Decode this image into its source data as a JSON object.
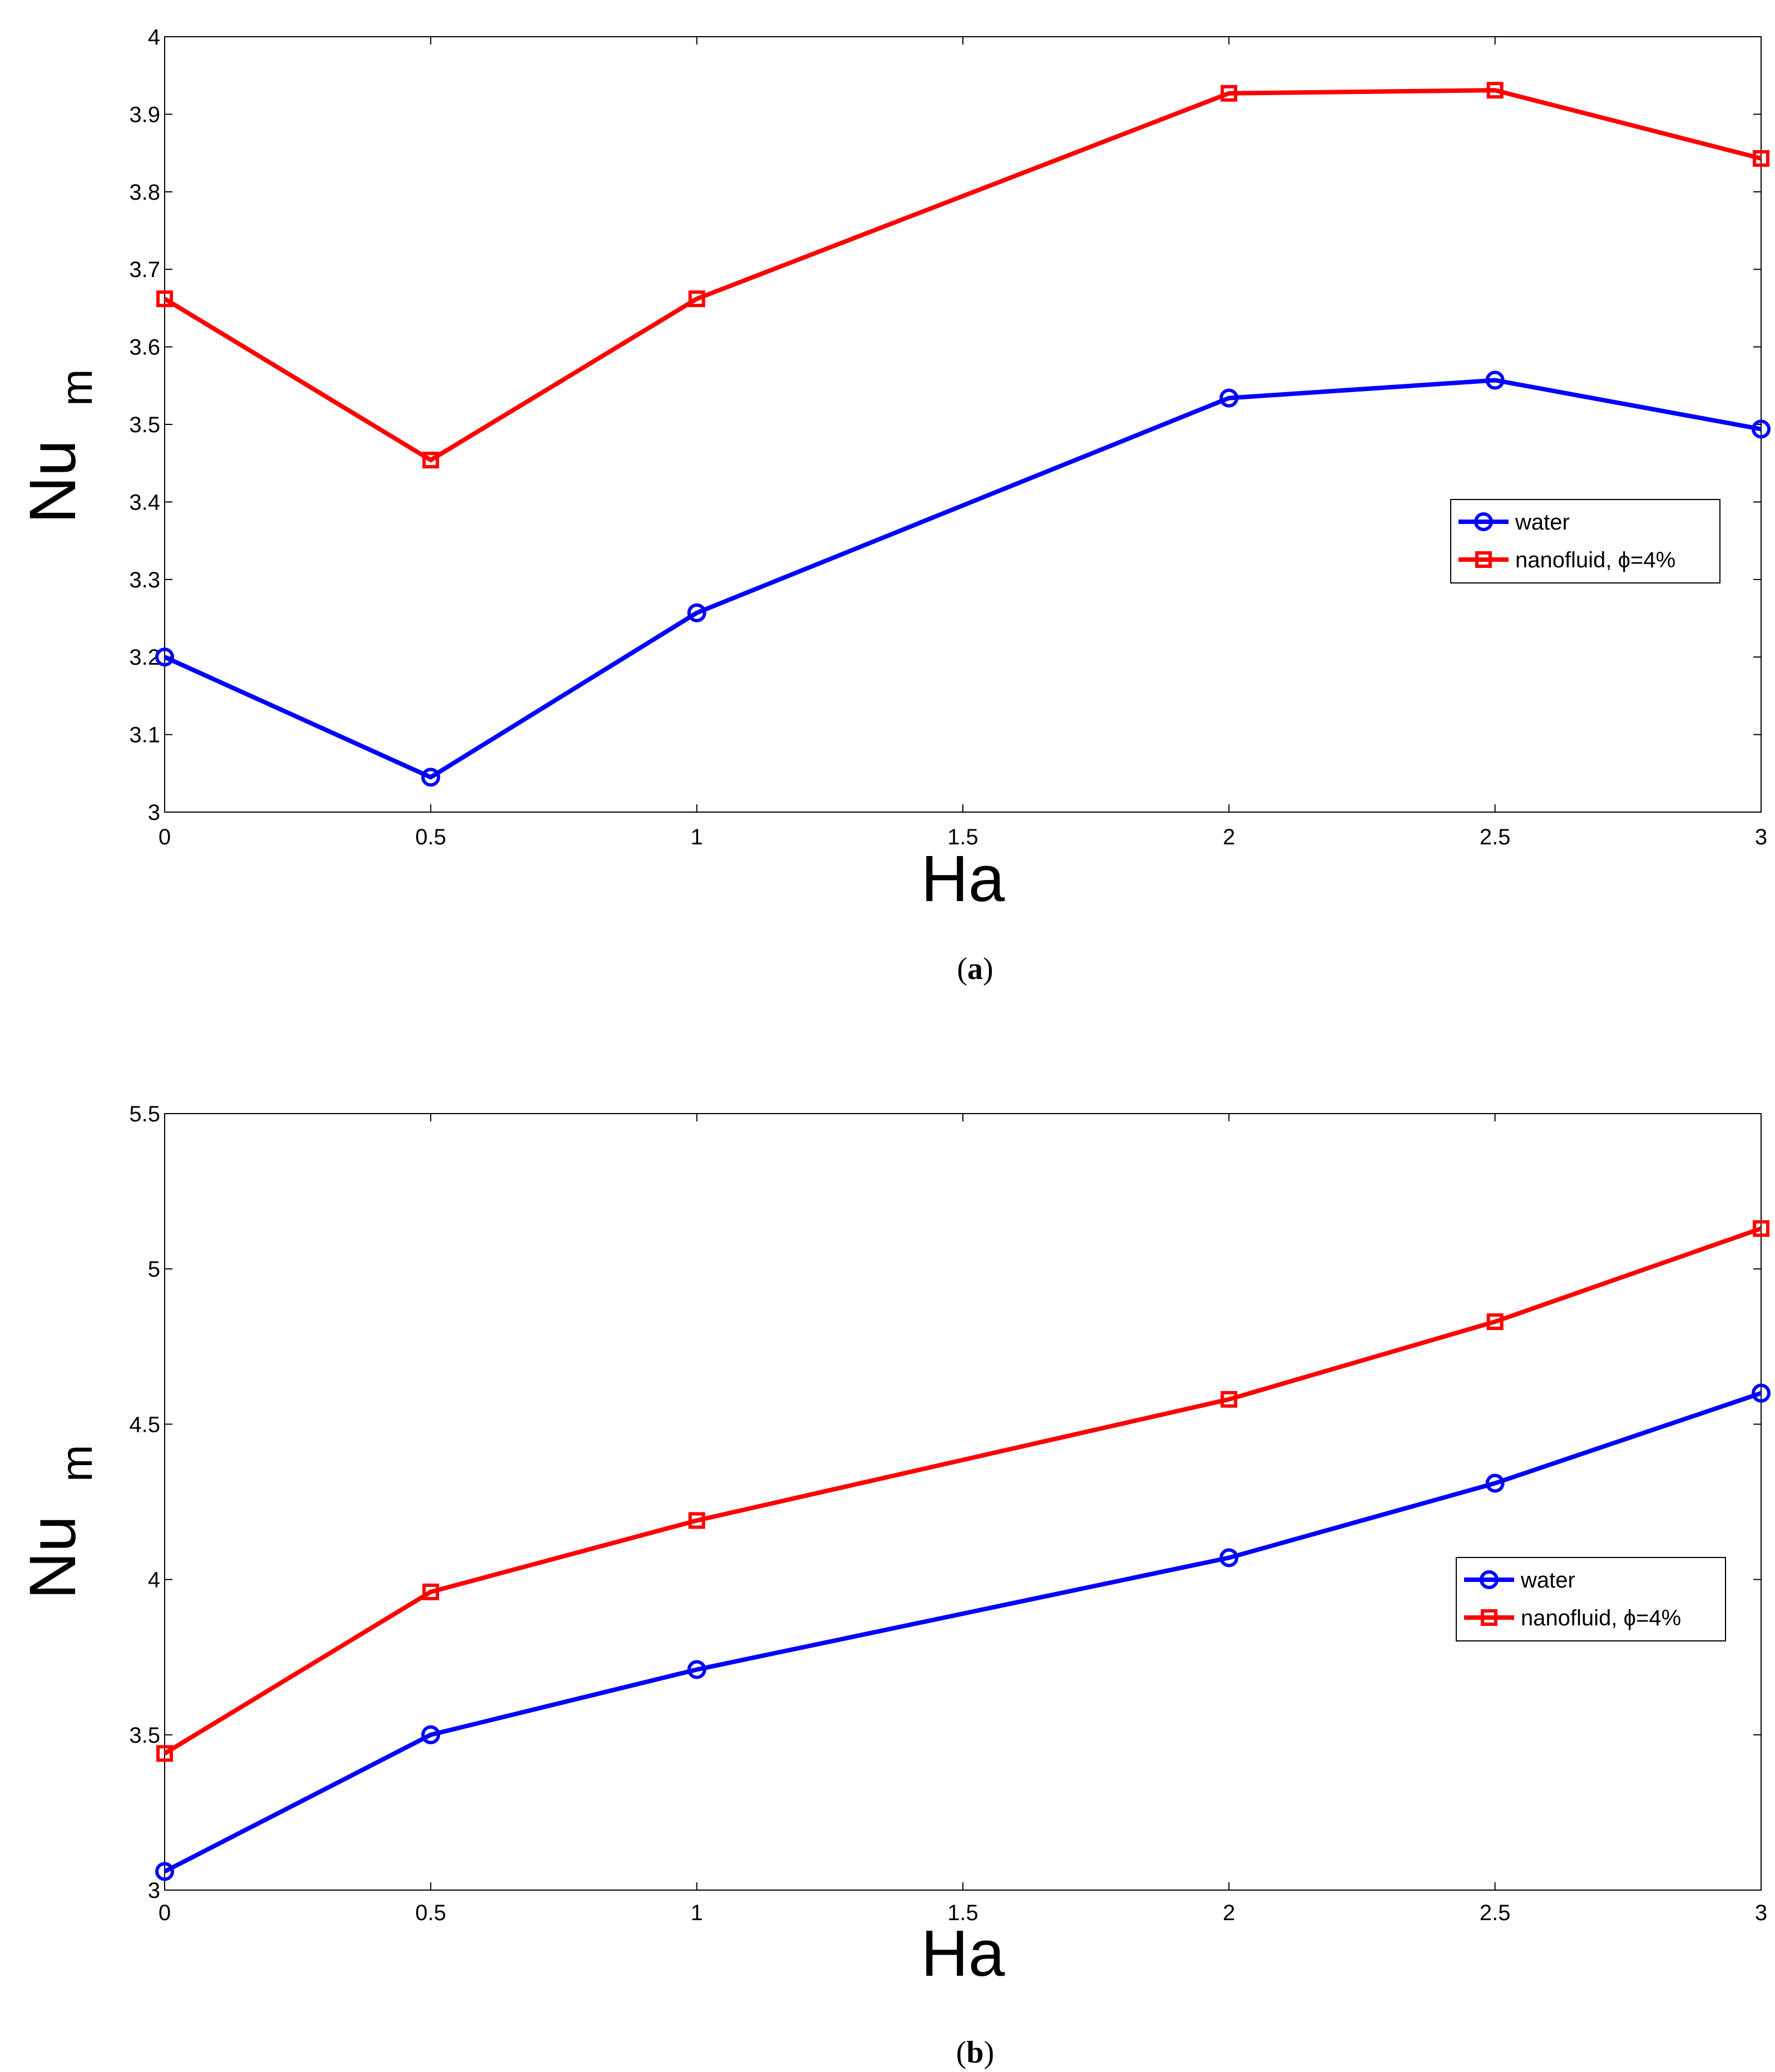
{
  "chart_data": [
    {
      "type": "line",
      "panel": "a",
      "xlabel": "Ha",
      "ylabel_main": "Nu",
      "ylabel_sub": "m",
      "x": [
        0,
        0.5,
        1,
        2,
        2.5,
        3
      ],
      "xlim": [
        0,
        3
      ],
      "ylim": [
        3,
        4
      ],
      "xticks": [
        0,
        0.5,
        1,
        1.5,
        2,
        2.5,
        3
      ],
      "xtick_labels": [
        "0",
        "0.5",
        "1",
        "1.5",
        "2",
        "2.5",
        "3"
      ],
      "yticks": [
        3,
        3.1,
        3.2,
        3.3,
        3.4,
        3.5,
        3.6,
        3.7,
        3.8,
        3.9,
        4
      ],
      "ytick_labels": [
        "3",
        "3.1",
        "3.2",
        "3.3",
        "3.4",
        "3.5",
        "3.6",
        "3.7",
        "3.8",
        "3.9",
        "4"
      ],
      "series": [
        {
          "name": "water",
          "color": "#0000ff",
          "marker": "circle",
          "values": [
            3.2,
            3.045,
            3.257,
            3.534,
            3.557,
            3.494
          ]
        },
        {
          "name": "nanofluid, ϕ=4%",
          "color": "#ff0000",
          "marker": "square",
          "values": [
            3.662,
            3.454,
            3.662,
            3.927,
            3.931,
            3.843
          ]
        }
      ],
      "legend_position": "right",
      "caption_open": "(",
      "caption_letter": "a",
      "caption_close": ")"
    },
    {
      "type": "line",
      "panel": "b",
      "xlabel": "Ha",
      "ylabel_main": "Nu",
      "ylabel_sub": "m",
      "x": [
        0,
        0.5,
        1,
        2,
        2.5,
        3
      ],
      "xlim": [
        0,
        3
      ],
      "ylim": [
        3,
        5.5
      ],
      "xticks": [
        0,
        0.5,
        1,
        1.5,
        2,
        2.5,
        3
      ],
      "xtick_labels": [
        "0",
        "0.5",
        "1",
        "1.5",
        "2",
        "2.5",
        "3"
      ],
      "yticks": [
        3,
        3.5,
        4,
        4.5,
        5,
        5.5
      ],
      "ytick_labels": [
        "3",
        "3.5",
        "4",
        "4.5",
        "5",
        "5.5"
      ],
      "series": [
        {
          "name": "water",
          "color": "#0000ff",
          "marker": "circle",
          "values": [
            3.06,
            3.5,
            3.71,
            4.07,
            4.31,
            4.6
          ]
        },
        {
          "name": "nanofluid, ϕ=4%",
          "color": "#ff0000",
          "marker": "square",
          "values": [
            3.44,
            3.96,
            4.19,
            4.58,
            4.83,
            5.13
          ]
        }
      ],
      "legend_position": "right",
      "caption_open": "(",
      "caption_letter": "b",
      "caption_close": ")"
    }
  ]
}
